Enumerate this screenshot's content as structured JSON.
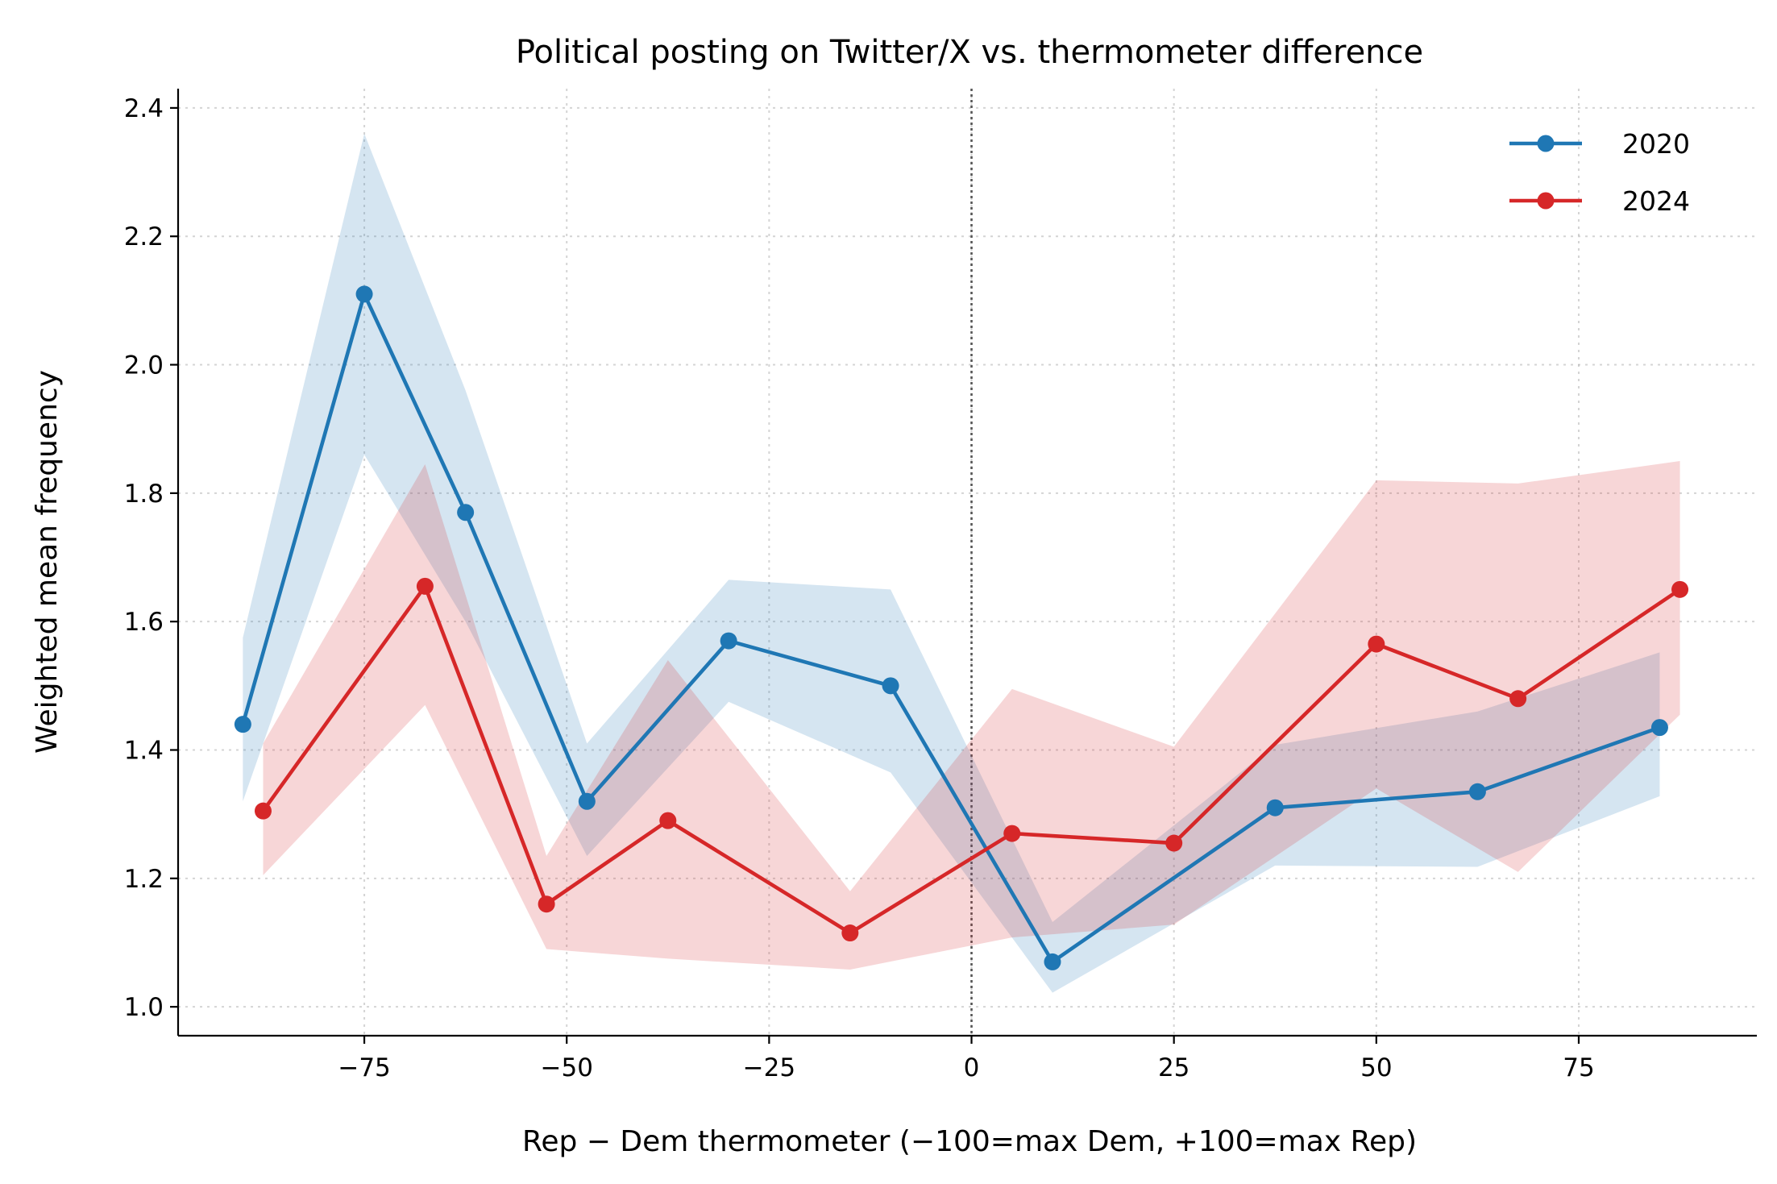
{
  "chart_data": {
    "type": "line",
    "title": "Political posting on Twitter/X vs. thermometer difference",
    "xlabel": "Rep − Dem thermometer (−100=max Dem, +100=max Rep)",
    "ylabel": "Weighted mean frequency",
    "xlim": [
      -98,
      97
    ],
    "ylim": [
      0.955,
      2.43
    ],
    "xticks": [
      -75,
      -50,
      -25,
      0,
      25,
      50,
      75
    ],
    "xtick_labels": [
      "−75",
      "−50",
      "−25",
      "0",
      "25",
      "50",
      "75"
    ],
    "yticks": [
      1.0,
      1.2,
      1.4,
      1.6,
      1.8,
      2.0,
      2.2,
      2.4
    ],
    "ytick_labels": [
      "1.0",
      "1.2",
      "1.4",
      "1.6",
      "1.8",
      "2.0",
      "2.2",
      "2.4"
    ],
    "grid": true,
    "reference_line_x": 0,
    "legend_position": "top-right",
    "series": [
      {
        "name": "2020",
        "color": "#1f77b4",
        "x": [
          -90,
          -75,
          -62.5,
          -47.5,
          -30,
          -10,
          10,
          37.5,
          62.5,
          85
        ],
        "y": [
          1.44,
          2.11,
          1.77,
          1.32,
          1.57,
          1.5,
          1.07,
          1.31,
          1.335,
          1.435
        ],
        "lower": [
          1.32,
          1.86,
          1.6,
          1.235,
          1.475,
          1.365,
          1.022,
          1.22,
          1.218,
          1.328
        ],
        "upper": [
          1.575,
          2.36,
          1.96,
          1.41,
          1.665,
          1.65,
          1.132,
          1.408,
          1.46,
          1.552
        ]
      },
      {
        "name": "2024",
        "color": "#d62728",
        "x": [
          -87.5,
          -67.5,
          -52.5,
          -37.5,
          -15,
          5,
          25,
          50,
          67.5,
          87.5
        ],
        "y": [
          1.305,
          1.655,
          1.16,
          1.29,
          1.115,
          1.27,
          1.255,
          1.565,
          1.48,
          1.65
        ],
        "lower": [
          1.205,
          1.47,
          1.09,
          1.075,
          1.058,
          1.108,
          1.128,
          1.34,
          1.21,
          1.455
        ],
        "upper": [
          1.41,
          1.845,
          1.235,
          1.54,
          1.18,
          1.495,
          1.405,
          1.82,
          1.815,
          1.85
        ]
      }
    ]
  }
}
